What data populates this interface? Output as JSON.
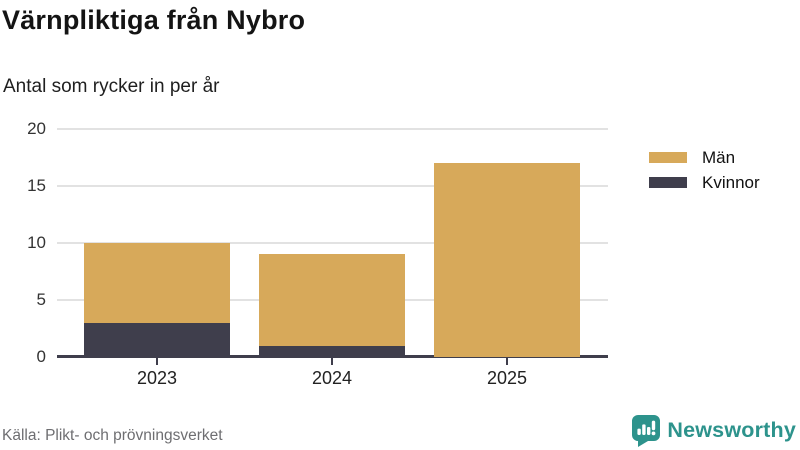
{
  "header": {
    "title": "Värnpliktiga från Nybro",
    "subtitle": "Antal som rycker in per år"
  },
  "footer": {
    "source": "Källa: Plikt- och prövningsverket",
    "brand_name": "Newsworthy"
  },
  "colors": {
    "men": "#d7a95a",
    "women": "#3f3e4c",
    "axis": "#3f3e4c",
    "grid": "#e2e2e2",
    "brand_teal": "#2d938c"
  },
  "icons": {
    "brand_logo": "bar-chart-speech-bubble-icon"
  },
  "chart_data": {
    "type": "bar",
    "stacked": true,
    "title": "Värnpliktiga från Nybro",
    "subtitle": "Antal som rycker in per år",
    "categories": [
      "2023",
      "2024",
      "2025"
    ],
    "series": [
      {
        "name": "Män",
        "color": "#d7a95a",
        "values": [
          7,
          8,
          17
        ]
      },
      {
        "name": "Kvinnor",
        "color": "#3f3e4c",
        "values": [
          3,
          1,
          0
        ]
      }
    ],
    "stack_totals": [
      10,
      9,
      17
    ],
    "xlabel": "",
    "ylabel": "",
    "ylim": [
      0,
      20
    ],
    "yticks": [
      0,
      5,
      10,
      15,
      20
    ],
    "grid": true,
    "legend_position": "right"
  }
}
